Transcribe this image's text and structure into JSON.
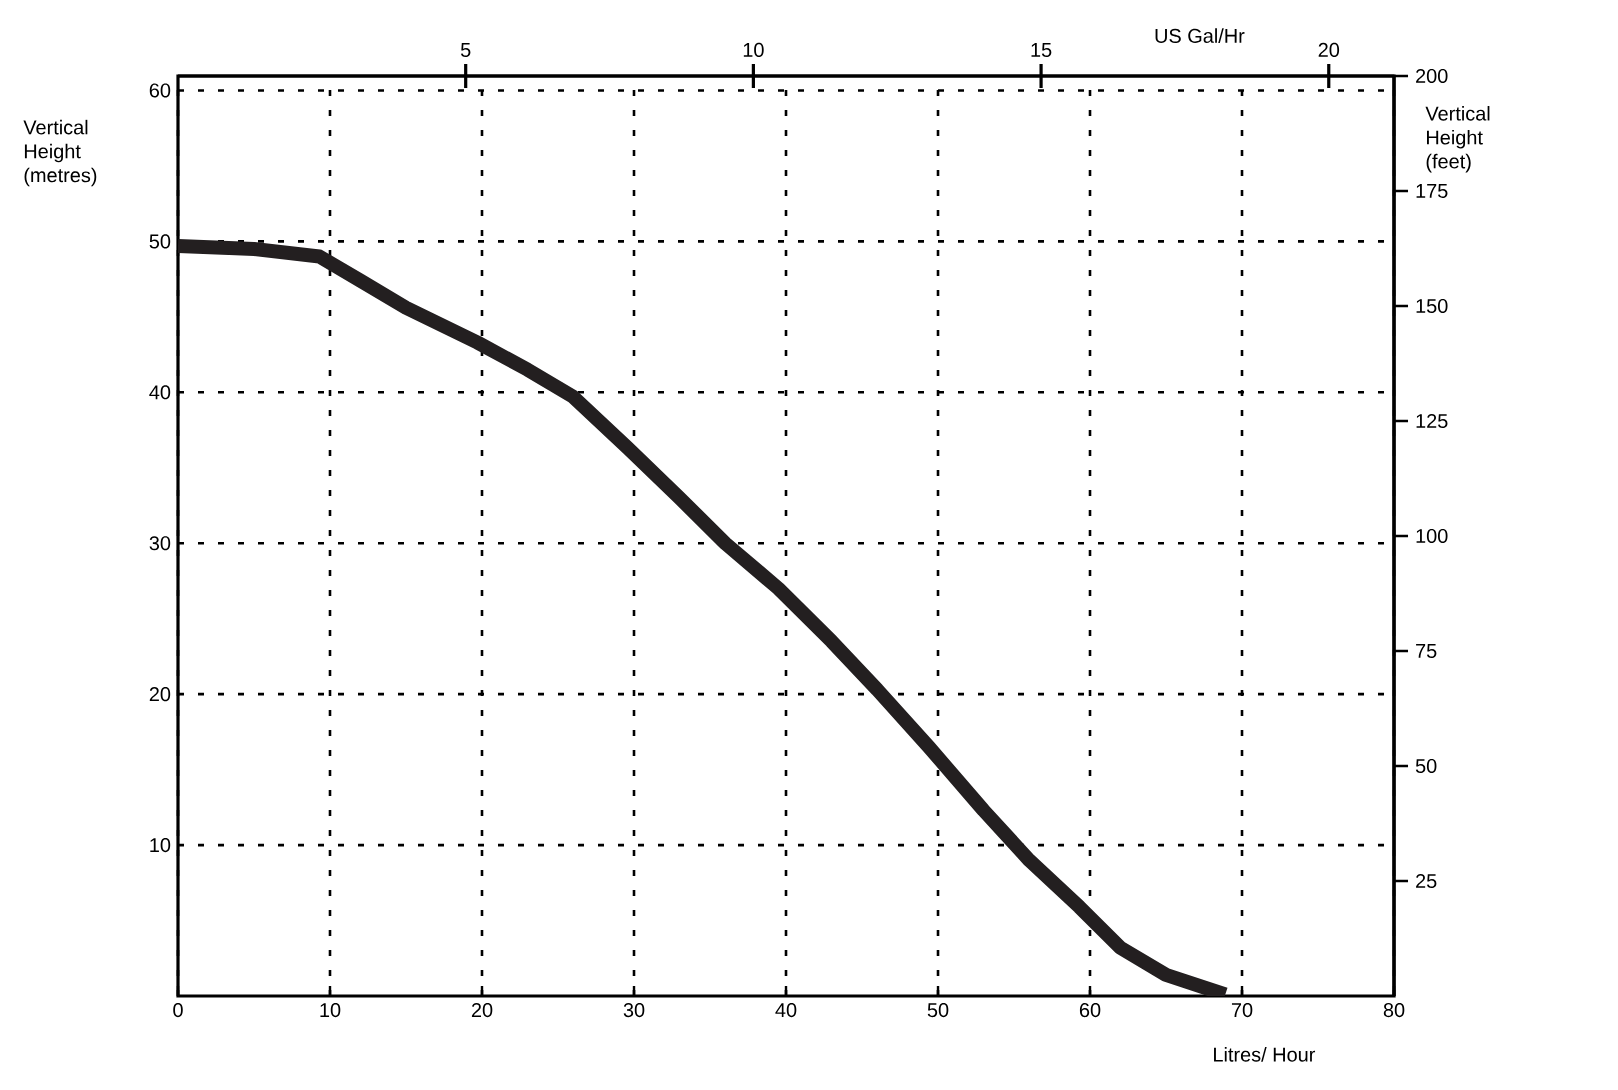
{
  "chart_data": {
    "type": "line",
    "xlabel": "Litres/ Hour",
    "ylabel": "Vertical Height (metres)",
    "y2label": "Vertical Height (feet)",
    "x2label": "US Gal/Hr",
    "x": [
      0,
      5,
      9.3,
      12,
      15,
      19.7,
      23,
      26,
      29.6,
      33,
      36,
      39.5,
      43,
      46,
      49.4,
      53,
      56,
      59.3,
      62,
      65,
      68.9
    ],
    "series": [
      {
        "color": "#231f20",
        "values": [
          49.7,
          49.5,
          49,
          47.4,
          45.6,
          43.3,
          41.5,
          39.7,
          36.3,
          33,
          30,
          27,
          23.5,
          20.3,
          16.5,
          12.3,
          9,
          5.9,
          3.2,
          1.4,
          0.1
        ]
      }
    ],
    "xlim": [
      0,
      80
    ],
    "xticks": [
      0,
      10,
      20,
      30,
      40,
      50,
      60,
      70,
      80
    ],
    "ylim": [
      0,
      60.96
    ],
    "yticks": [
      10,
      20,
      30,
      40,
      50,
      60
    ],
    "x2lim": [
      0,
      21.134
    ],
    "x2ticks": [
      5,
      10,
      15,
      20
    ],
    "y2lim": [
      0,
      200
    ],
    "y2ticks": [
      25,
      50,
      75,
      100,
      125,
      150,
      175,
      200
    ],
    "grid": true
  }
}
